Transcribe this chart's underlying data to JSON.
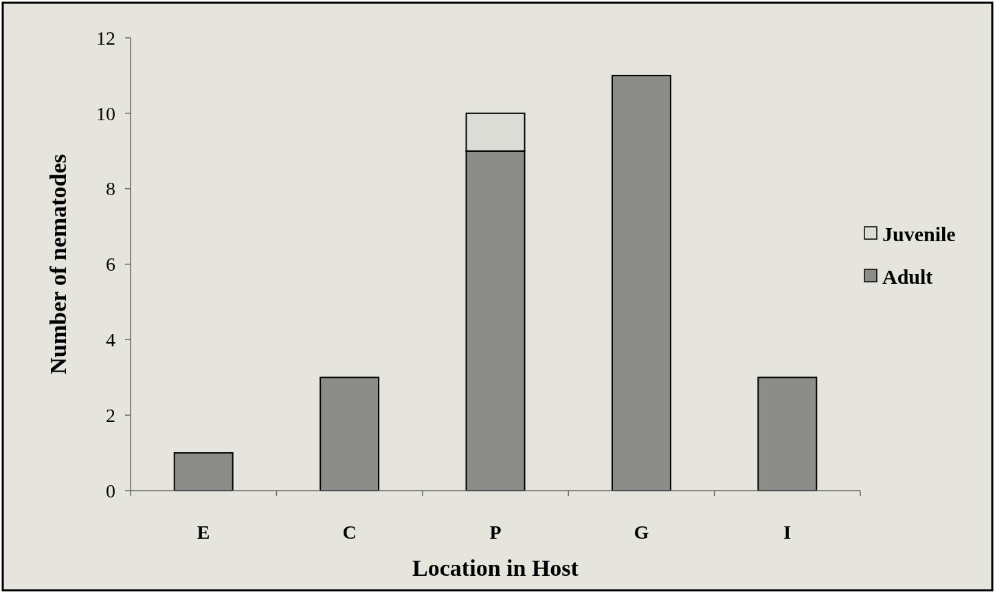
{
  "chart_data": {
    "type": "bar",
    "stacked": true,
    "xlabel": "Location in Host",
    "ylabel": "Number of nematodes",
    "categories": [
      "E",
      "C",
      "P",
      "G",
      "I"
    ],
    "series": [
      {
        "name": "Adult",
        "color": "#8c8c88",
        "values": [
          1,
          3,
          9,
          11,
          3
        ]
      },
      {
        "name": "Juvenile",
        "color": "#dcdcd6",
        "values": [
          0,
          0,
          1,
          0,
          0
        ]
      }
    ],
    "ylim": [
      0,
      12
    ],
    "yticks": [
      0,
      2,
      4,
      6,
      8,
      10,
      12
    ],
    "grid": false,
    "legend": "right"
  }
}
